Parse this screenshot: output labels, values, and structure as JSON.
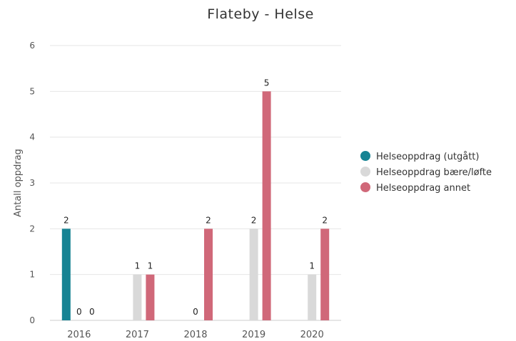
{
  "chart_data": {
    "type": "bar",
    "title": "Flateby - Helse",
    "ylabel": "Antall oppdrag",
    "xlabel": "",
    "categories": [
      "2016",
      "2017",
      "2018",
      "2019",
      "2020"
    ],
    "ylim": [
      0,
      6
    ],
    "yticks": [
      "0",
      "1",
      "2",
      "3",
      "4",
      "5",
      "6"
    ],
    "grid": true,
    "legend_position": "right",
    "series": [
      {
        "name": "Helseoppdrag (utgått)",
        "color": "#168393",
        "values": [
          2,
          null,
          null,
          null,
          null
        ]
      },
      {
        "name": "Helseoppdrag bære/løfte",
        "color": "#d9d9d9",
        "values": [
          0,
          1,
          0,
          2,
          1
        ]
      },
      {
        "name": "Helseoppdrag annet",
        "color": "#d06879",
        "values": [
          0,
          1,
          2,
          5,
          2
        ]
      }
    ]
  }
}
